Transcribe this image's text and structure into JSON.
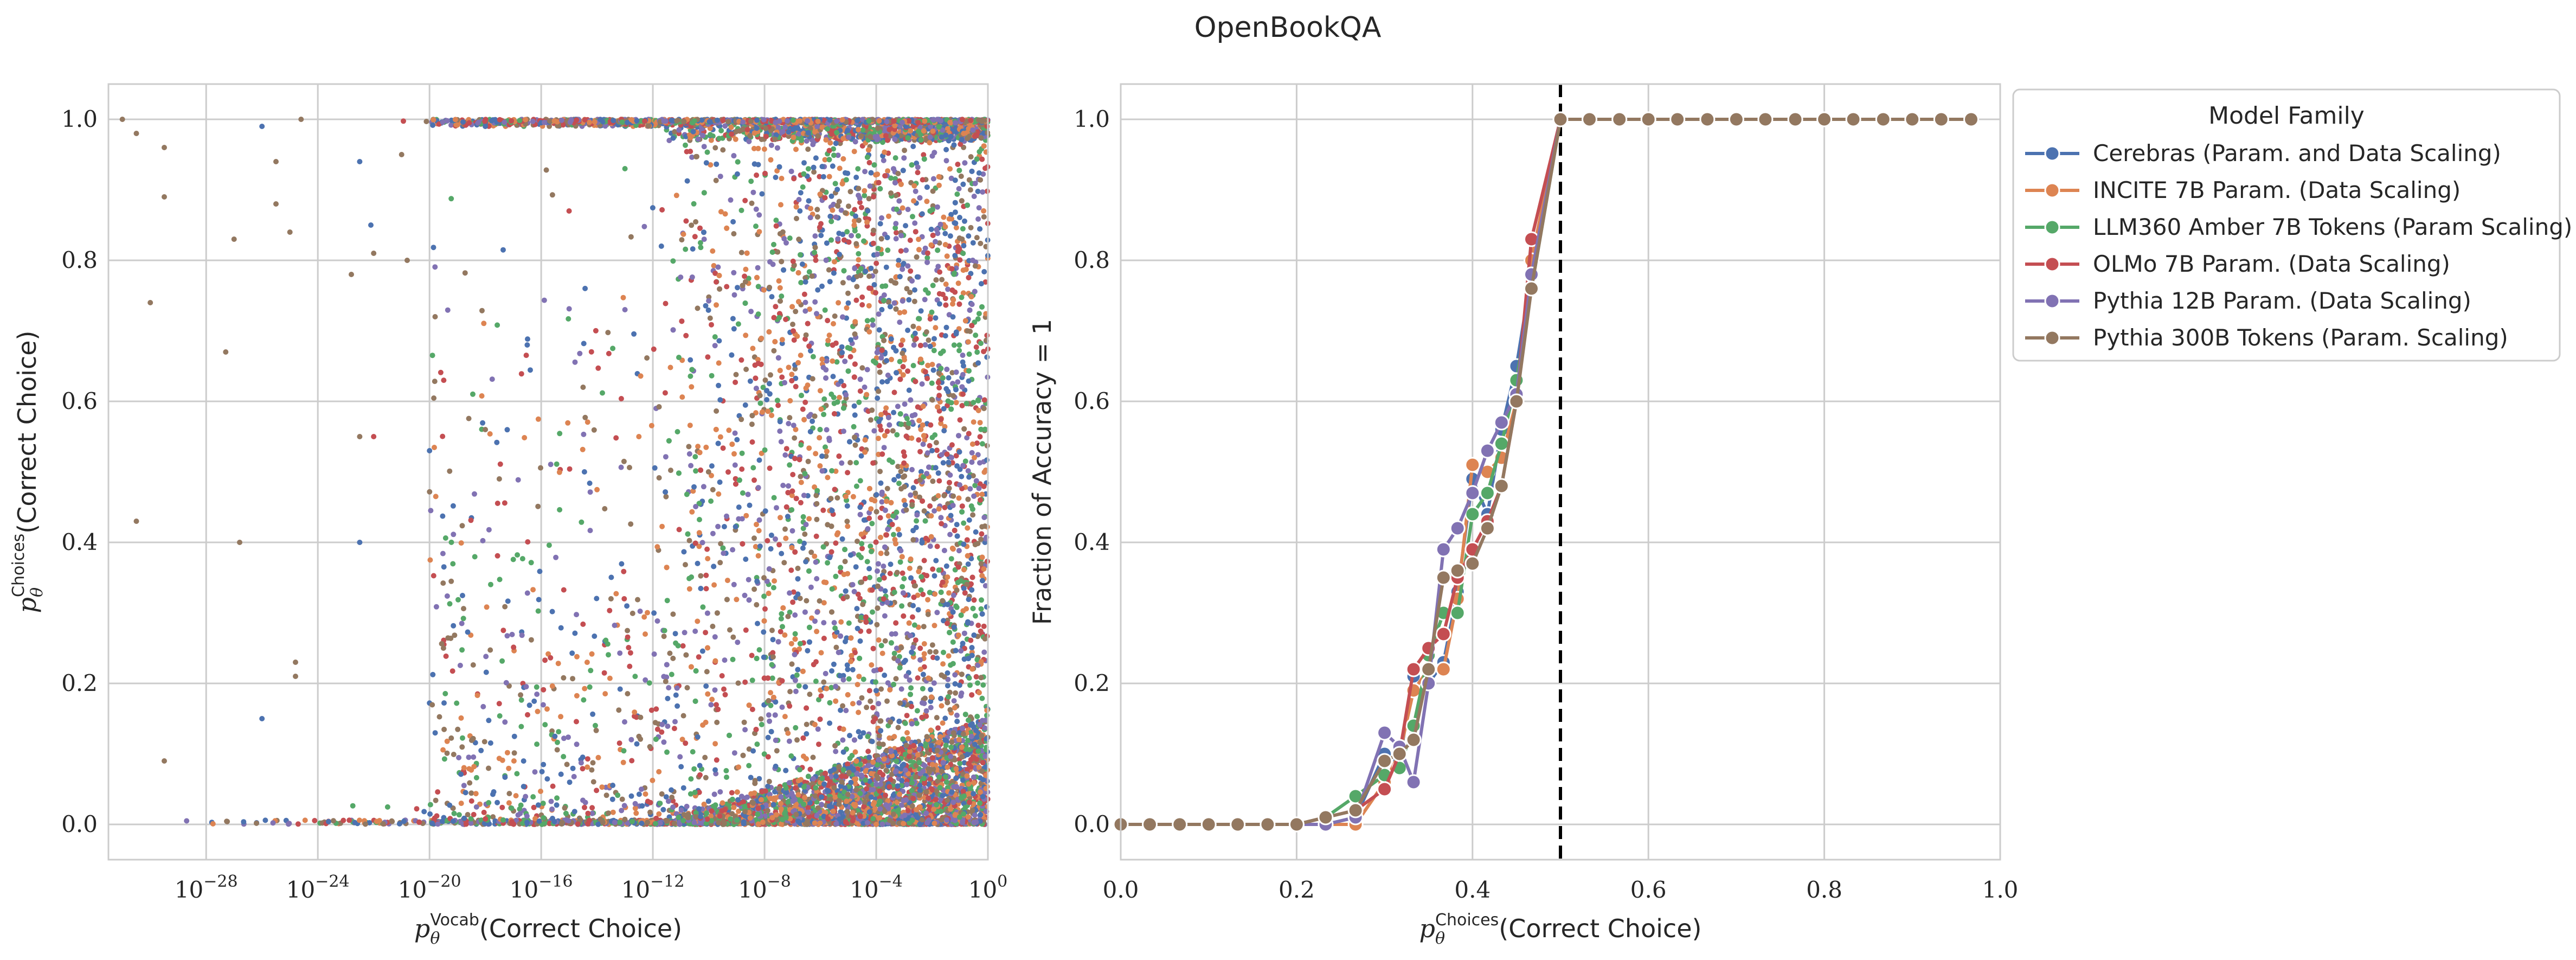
{
  "figure": {
    "title": "OpenBookQA"
  },
  "chart_data": [
    {
      "type": "scatter",
      "xscale": "log",
      "xlabel": "p_θ^Vocab(Correct Choice)",
      "xlabel_parts": {
        "base": "p",
        "sub": "θ",
        "sup": "Vocab",
        "tail": "(Correct Choice)"
      },
      "ylabel": "p_θ^Choices(Correct Choice)",
      "ylabel_parts": {
        "base": "p",
        "sub": "θ",
        "sup": "Choices",
        "tail": "(Correct Choice)"
      },
      "xlim_log10": [
        -31.5,
        0
      ],
      "ylim": [
        -0.05,
        1.05
      ],
      "x_ticks": [
        {
          "exp": -28,
          "label_base": "10",
          "label_exp": "−28"
        },
        {
          "exp": -24,
          "label_base": "10",
          "label_exp": "−24"
        },
        {
          "exp": -20,
          "label_base": "10",
          "label_exp": "−20"
        },
        {
          "exp": -16,
          "label_base": "10",
          "label_exp": "−16"
        },
        {
          "exp": -12,
          "label_base": "10",
          "label_exp": "−12"
        },
        {
          "exp": -8,
          "label_base": "10",
          "label_exp": "−8"
        },
        {
          "exp": -4,
          "label_base": "10",
          "label_exp": "−4"
        },
        {
          "exp": 0,
          "label_base": "10",
          "label_exp": "0"
        }
      ],
      "y_ticks": [
        {
          "value": 0.0,
          "label": "0.0"
        },
        {
          "value": 0.2,
          "label": "0.2"
        },
        {
          "value": 0.4,
          "label": "0.4"
        },
        {
          "value": 0.6,
          "label": "0.6"
        },
        {
          "value": 0.8,
          "label": "0.8"
        },
        {
          "value": 1.0,
          "label": "1.0"
        }
      ],
      "grid": true,
      "series": [
        {
          "color": "#4c72b0"
        },
        {
          "color": "#dd8452"
        },
        {
          "color": "#55a868"
        },
        {
          "color": "#c44e52"
        },
        {
          "color": "#8172b3"
        },
        {
          "color": "#937860"
        }
      ],
      "points_description": "dense cloud; p_vocab concentrated 1e-10 to 1, many points at choices≈0 and ≈1",
      "points": [
        [
          -31,
          1.0,
          5
        ],
        [
          -30.5,
          0.98,
          5
        ],
        [
          -30,
          0.74,
          5
        ],
        [
          -29.5,
          0.96,
          5
        ],
        [
          -29.5,
          0.89,
          5
        ],
        [
          -30.5,
          0.43,
          5
        ],
        [
          -29.5,
          0.09,
          5
        ],
        [
          -27,
          0.83,
          5
        ],
        [
          -27.3,
          0.67,
          5
        ],
        [
          -26.8,
          0.4,
          5
        ],
        [
          -26,
          0.99,
          0
        ],
        [
          -25.5,
          0.94,
          5
        ],
        [
          -25.5,
          0.88,
          5
        ],
        [
          -25,
          0.84,
          5
        ],
        [
          -24.6,
          1.0,
          5
        ],
        [
          -26,
          0.15,
          0
        ],
        [
          -24.8,
          0.23,
          5
        ],
        [
          -24.8,
          0.21,
          5
        ],
        [
          -22.5,
          0.94,
          0
        ],
        [
          -22.1,
          0.85,
          0
        ],
        [
          -22,
          0.81,
          5
        ],
        [
          -22,
          0.55,
          3
        ],
        [
          -22.8,
          0.78,
          5
        ],
        [
          -22.5,
          0.55,
          5
        ],
        [
          -22.5,
          0.4,
          0
        ],
        [
          -20.8,
          0.8,
          5
        ],
        [
          -19.8,
          0.72,
          5
        ],
        [
          -20,
          0.53,
          0
        ],
        [
          -19.5,
          0.25,
          5
        ],
        [
          -18,
          0.56,
          5
        ],
        [
          -17.5,
          0.49,
          5
        ],
        [
          -16.5,
          0.68,
          0
        ],
        [
          -15,
          0.87,
          3
        ],
        [
          -14.5,
          0.62,
          5
        ],
        [
          -13,
          0.93,
          2
        ],
        [
          -13,
          0.73,
          4
        ],
        [
          -12.5,
          0.55,
          1
        ],
        [
          -13.5,
          0.32,
          5
        ],
        [
          -21,
          0.95,
          5
        ],
        [
          -18,
          0.99,
          0
        ]
      ]
    },
    {
      "type": "line",
      "xlabel": "p_θ^Choices(Correct Choice)",
      "xlabel_parts": {
        "base": "p",
        "sub": "θ",
        "sup": "Choices",
        "tail": "(Correct Choice)"
      },
      "ylabel": "Fraction of Accuracy = 1",
      "xlim": [
        0.0,
        1.0
      ],
      "ylim": [
        -0.05,
        1.05
      ],
      "x_ticks": [
        {
          "value": 0.0,
          "label": "0.0"
        },
        {
          "value": 0.2,
          "label": "0.2"
        },
        {
          "value": 0.4,
          "label": "0.4"
        },
        {
          "value": 0.6,
          "label": "0.6"
        },
        {
          "value": 0.8,
          "label": "0.8"
        },
        {
          "value": 1.0,
          "label": "1.0"
        }
      ],
      "y_ticks": [
        {
          "value": 0.0,
          "label": "0.0"
        },
        {
          "value": 0.2,
          "label": "0.2"
        },
        {
          "value": 0.4,
          "label": "0.4"
        },
        {
          "value": 0.6,
          "label": "0.6"
        },
        {
          "value": 0.8,
          "label": "0.8"
        },
        {
          "value": 1.0,
          "label": "1.0"
        }
      ],
      "vline_x": 0.5,
      "grid": true,
      "legend": {
        "title": "Model Family",
        "placement": "outside-upper-right"
      },
      "x": [
        0.0,
        0.033,
        0.067,
        0.1,
        0.133,
        0.167,
        0.2,
        0.233,
        0.267,
        0.3,
        0.317,
        0.333,
        0.35,
        0.367,
        0.383,
        0.4,
        0.417,
        0.433,
        0.45,
        0.467,
        0.5,
        0.533,
        0.567,
        0.6,
        0.633,
        0.667,
        0.7,
        0.733,
        0.767,
        0.8,
        0.833,
        0.867,
        0.9,
        0.933,
        0.967
      ],
      "series": [
        {
          "name": "Cerebras (Param. and Data Scaling)",
          "color": "#4c72b0",
          "values": [
            0,
            0,
            0,
            0,
            0,
            0,
            0,
            0,
            0.01,
            0.1,
            0.09,
            0.21,
            0.2,
            0.23,
            0.33,
            0.49,
            0.44,
            0.56,
            0.65,
            0.78,
            1,
            1,
            1,
            1,
            1,
            1,
            1,
            1,
            1,
            1,
            1,
            1,
            1,
            1,
            1
          ]
        },
        {
          "name": "INCITE 7B Param. (Data Scaling)",
          "color": "#dd8452",
          "values": [
            0,
            0,
            0,
            0,
            0,
            0,
            0,
            0,
            0,
            0.06,
            0.1,
            0.19,
            0.22,
            0.22,
            0.32,
            0.51,
            0.5,
            0.52,
            0.6,
            0.8,
            1,
            1,
            1,
            1,
            1,
            1,
            1,
            1,
            1,
            1,
            1,
            1,
            1,
            1,
            1
          ]
        },
        {
          "name": "LLM360 Amber 7B Tokens (Param Scaling)",
          "color": "#55a868",
          "values": [
            0,
            0,
            0,
            0,
            0,
            0,
            0,
            0.01,
            0.04,
            0.07,
            0.08,
            0.14,
            0.24,
            0.3,
            0.3,
            0.44,
            0.47,
            0.54,
            0.63,
            0.76,
            1,
            1,
            1,
            1,
            1,
            1,
            1,
            1,
            1,
            1,
            1,
            1,
            1,
            1,
            1
          ]
        },
        {
          "name": "OLMo 7B Param. (Data Scaling)",
          "color": "#c44e52",
          "values": [
            0,
            0,
            0,
            0,
            0,
            0,
            0,
            0.01,
            0.02,
            0.05,
            0.1,
            0.22,
            0.25,
            0.27,
            0.35,
            0.39,
            0.43,
            0.48,
            0.6,
            0.83,
            1,
            1,
            1,
            1,
            1,
            1,
            1,
            1,
            1,
            1,
            1,
            1,
            1,
            1,
            1
          ]
        },
        {
          "name": "Pythia 12B Param. (Data Scaling)",
          "color": "#8172b3",
          "values": [
            0,
            0,
            0,
            0,
            0,
            0,
            0,
            0,
            0.01,
            0.13,
            0.11,
            0.06,
            0.2,
            0.39,
            0.42,
            0.47,
            0.53,
            0.57,
            0.61,
            0.78,
            1,
            1,
            1,
            1,
            1,
            1,
            1,
            1,
            1,
            1,
            1,
            1,
            1,
            1,
            1
          ]
        },
        {
          "name": "Pythia 300B Tokens (Param. Scaling)",
          "color": "#937860",
          "values": [
            0,
            0,
            0,
            0,
            0,
            0,
            0,
            0.01,
            0.02,
            0.09,
            0.1,
            0.12,
            0.22,
            0.35,
            0.36,
            0.37,
            0.42,
            0.48,
            0.6,
            0.76,
            1,
            1,
            1,
            1,
            1,
            1,
            1,
            1,
            1,
            1,
            1,
            1,
            1,
            1,
            1
          ]
        }
      ]
    }
  ]
}
